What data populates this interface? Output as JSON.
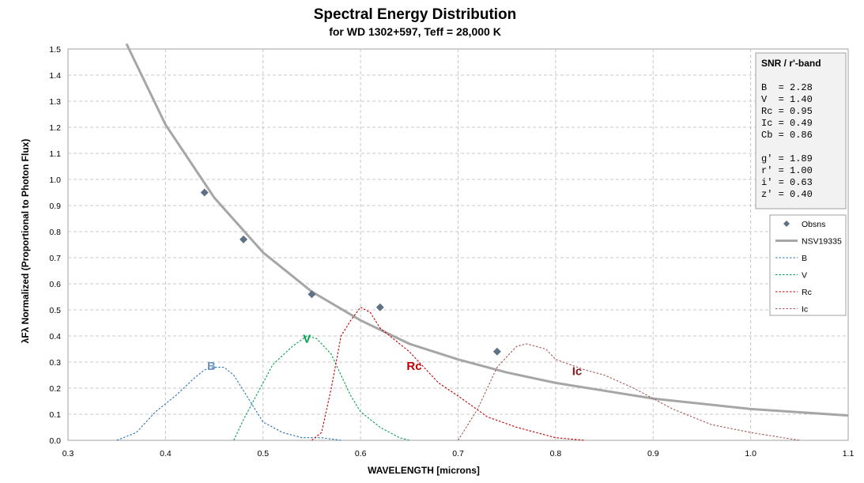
{
  "chart_data": {
    "type": "line",
    "title": "Spectral Energy Distribution",
    "subtitle": "for WD 1302+597,  Teff = 28,000 K",
    "xlabel": "WAVELENGTH  [microns]",
    "ylabel": "λFλ Normalized (Proportional to Photon Flux)",
    "xlim": [
      0.3,
      1.1
    ],
    "ylim": [
      0.0,
      1.5
    ],
    "x_ticks": [
      0.3,
      0.4,
      0.5,
      0.6,
      0.7,
      0.8,
      0.9,
      1.0,
      1.1
    ],
    "x_tick_labels": [
      "0.3",
      "0.4",
      "0.5",
      "0.6",
      "0.7",
      "0.8",
      "0.9",
      "1.0",
      "1.1"
    ],
    "y_ticks": [
      0.0,
      0.1,
      0.2,
      0.3,
      0.4,
      0.5,
      0.6,
      0.7,
      0.8,
      0.9,
      1.0,
      1.1,
      1.2,
      1.3,
      1.4,
      1.5
    ],
    "y_tick_labels": [
      "0.0",
      "0.1",
      "0.2",
      "0.3",
      "0.4",
      "0.5",
      "0.6",
      "0.7",
      "0.8",
      "0.9",
      "1.0",
      "1.1",
      "1.2",
      "1.3",
      "1.4",
      "1.5"
    ],
    "grid": true,
    "legend_position": "right",
    "series": [
      {
        "name": "Obsns",
        "style": "marker",
        "color": "#5f7285",
        "points": [
          [
            0.44,
            0.95
          ],
          [
            0.48,
            0.77
          ],
          [
            0.55,
            0.56
          ],
          [
            0.62,
            0.51
          ],
          [
            0.74,
            0.34
          ]
        ]
      },
      {
        "name": "NSV19335",
        "style": "solid",
        "color": "#a6a6a6",
        "points": [
          [
            0.36,
            1.52
          ],
          [
            0.4,
            1.21
          ],
          [
            0.45,
            0.93
          ],
          [
            0.5,
            0.72
          ],
          [
            0.55,
            0.57
          ],
          [
            0.6,
            0.46
          ],
          [
            0.65,
            0.37
          ],
          [
            0.7,
            0.31
          ],
          [
            0.75,
            0.26
          ],
          [
            0.8,
            0.22
          ],
          [
            0.9,
            0.16
          ],
          [
            1.0,
            0.12
          ],
          [
            1.1,
            0.095
          ]
        ]
      },
      {
        "name": "B",
        "style": "dotted",
        "color": "#2e75b6",
        "points": [
          [
            0.35,
            0.0
          ],
          [
            0.37,
            0.03
          ],
          [
            0.39,
            0.11
          ],
          [
            0.41,
            0.17
          ],
          [
            0.43,
            0.24
          ],
          [
            0.44,
            0.27
          ],
          [
            0.45,
            0.28
          ],
          [
            0.46,
            0.28
          ],
          [
            0.47,
            0.25
          ],
          [
            0.48,
            0.19
          ],
          [
            0.49,
            0.13
          ],
          [
            0.5,
            0.07
          ],
          [
            0.52,
            0.03
          ],
          [
            0.54,
            0.01
          ],
          [
            0.56,
            0.01
          ],
          [
            0.58,
            0.0
          ]
        ]
      },
      {
        "name": "V",
        "style": "dotted",
        "color": "#00a050",
        "points": [
          [
            0.47,
            0.0
          ],
          [
            0.48,
            0.08
          ],
          [
            0.5,
            0.22
          ],
          [
            0.51,
            0.29
          ],
          [
            0.53,
            0.36
          ],
          [
            0.545,
            0.4
          ],
          [
            0.555,
            0.39
          ],
          [
            0.57,
            0.33
          ],
          [
            0.58,
            0.25
          ],
          [
            0.59,
            0.17
          ],
          [
            0.6,
            0.11
          ],
          [
            0.62,
            0.05
          ],
          [
            0.64,
            0.01
          ],
          [
            0.65,
            0.0
          ]
        ]
      },
      {
        "name": "Rc",
        "style": "dotted",
        "color": "#c00000",
        "points": [
          [
            0.55,
            0.0
          ],
          [
            0.56,
            0.03
          ],
          [
            0.57,
            0.2
          ],
          [
            0.58,
            0.4
          ],
          [
            0.59,
            0.46
          ],
          [
            0.6,
            0.51
          ],
          [
            0.61,
            0.49
          ],
          [
            0.62,
            0.43
          ],
          [
            0.65,
            0.34
          ],
          [
            0.68,
            0.22
          ],
          [
            0.7,
            0.17
          ],
          [
            0.73,
            0.09
          ],
          [
            0.76,
            0.05
          ],
          [
            0.8,
            0.01
          ],
          [
            0.83,
            0.0
          ]
        ]
      },
      {
        "name": "Ic",
        "style": "dotted",
        "color": "#a55a5a",
        "points": [
          [
            0.7,
            0.0
          ],
          [
            0.72,
            0.12
          ],
          [
            0.74,
            0.28
          ],
          [
            0.76,
            0.36
          ],
          [
            0.77,
            0.37
          ],
          [
            0.79,
            0.35
          ],
          [
            0.8,
            0.31
          ],
          [
            0.83,
            0.27
          ],
          [
            0.85,
            0.25
          ],
          [
            0.88,
            0.2
          ],
          [
            0.92,
            0.12
          ],
          [
            0.96,
            0.06
          ],
          [
            1.0,
            0.03
          ],
          [
            1.05,
            0.0
          ]
        ]
      }
    ],
    "annotations": [
      {
        "text": "B",
        "x": 0.447,
        "y": 0.27,
        "color": "#6f97c1"
      },
      {
        "text": "V",
        "x": 0.545,
        "y": 0.375,
        "color": "#00a050"
      },
      {
        "text": "Rc",
        "x": 0.655,
        "y": 0.27,
        "color": "#c00000"
      },
      {
        "text": "Ic",
        "x": 0.822,
        "y": 0.25,
        "color": "#8b1a1a"
      }
    ],
    "snr_box": {
      "title": "SNR / r'-band",
      "lines": [
        "B  = 2.28",
        "V  = 1.40",
        "Rc = 0.95",
        "Ic = 0.49",
        "Cb = 0.86",
        "",
        "g' = 1.89",
        "r' = 1.00",
        "i' = 0.63",
        "z' = 0.40"
      ]
    }
  }
}
